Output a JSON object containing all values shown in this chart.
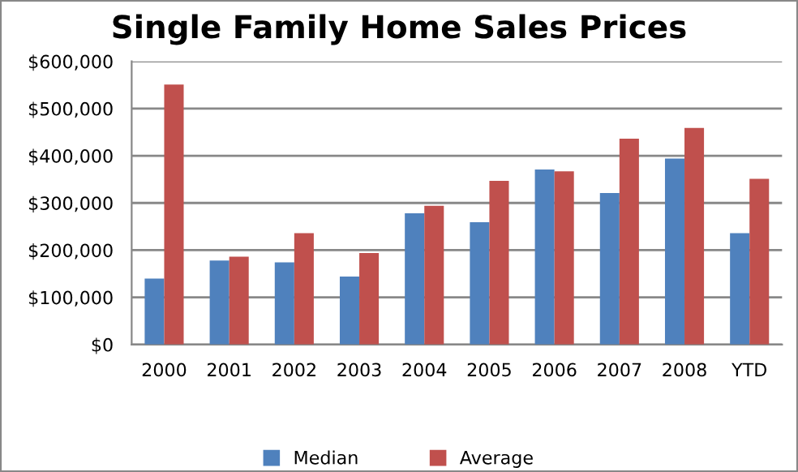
{
  "chart_data": {
    "type": "bar",
    "title": "Single Family Home Sales Prices",
    "categories": [
      "2000",
      "2001",
      "2002",
      "2003",
      "2004",
      "2005",
      "2006",
      "2007",
      "2008",
      "YTD"
    ],
    "series": [
      {
        "name": "Median",
        "color": "#4f81bd",
        "values": [
          140000,
          178000,
          174000,
          144000,
          278000,
          259000,
          371000,
          321000,
          394000,
          236000
        ]
      },
      {
        "name": "Average",
        "color": "#c0504d",
        "values": [
          551000,
          186000,
          236000,
          194000,
          294000,
          347000,
          367000,
          436000,
          459000,
          351000
        ]
      }
    ],
    "ylim": [
      0,
      600000
    ],
    "yticks": [
      {
        "value": 0,
        "label": "$0"
      },
      {
        "value": 100000,
        "label": "$100,000"
      },
      {
        "value": 200000,
        "label": "$200,000"
      },
      {
        "value": 300000,
        "label": "$300,000"
      },
      {
        "value": 400000,
        "label": "$400,000"
      },
      {
        "value": 500000,
        "label": "$500,000"
      },
      {
        "value": 600000,
        "label": "$600,000"
      }
    ],
    "grid": "y",
    "legend": "bottom"
  }
}
